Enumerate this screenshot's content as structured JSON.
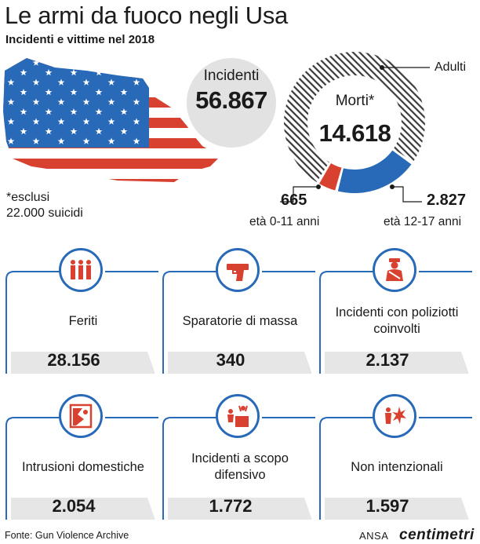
{
  "title": "Le armi da fuoco negli Usa",
  "subtitle": "Incidenti e vittime nel 2018",
  "incidents": {
    "label": "Incidenti",
    "value": "56.867"
  },
  "note": {
    "line1": "*esclusi",
    "line2": "22.000 suicidi"
  },
  "deaths": {
    "label": "Morti*",
    "value": "14.618",
    "adults_label": "Adulti",
    "kids_value": "665",
    "kids_label": "età 0-11 anni",
    "teens_value": "2.827",
    "teens_label": "età 12-17 anni"
  },
  "chart_data": {
    "type": "pie",
    "title": "Morti*",
    "total": 14618,
    "series": [
      {
        "name": "Adulti",
        "value": 11126
      },
      {
        "name": "età 0-11 anni",
        "value": 665
      },
      {
        "name": "età 12-17 anni",
        "value": 2827
      }
    ]
  },
  "cards": [
    {
      "label": "Feriti",
      "value": "28.156",
      "icon": "people-group-icon"
    },
    {
      "label": "Sparatorie di massa",
      "value": "340",
      "icon": "pistol-icon"
    },
    {
      "label": "Incidenti con poliziotti coinvolti",
      "value": "2.137",
      "icon": "police-officer-icon"
    },
    {
      "label": "Intrusioni domestiche",
      "value": "2.054",
      "icon": "broken-window-icon"
    },
    {
      "label": "Incidenti a scopo difensivo",
      "value": "1.772",
      "icon": "defense-desk-icon"
    },
    {
      "label": "Non intenzionali",
      "value": "1.597",
      "icon": "explosion-icon"
    }
  ],
  "colors": {
    "accent_blue": "#2869b8",
    "accent_red": "#d8412f",
    "card_gray": "#e6e6e6",
    "circle_gray": "#e2e2e2"
  },
  "footer": {
    "source": "Fonte: Gun Violence Archive",
    "ansa": "ANSA",
    "centimetri": "centimetri"
  }
}
